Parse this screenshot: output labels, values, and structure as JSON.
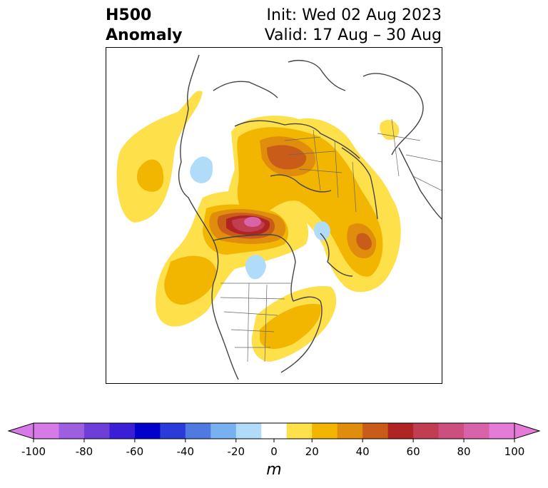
{
  "title": {
    "left_line1": "H500",
    "left_line2": "Anomaly",
    "right_line1": "Init: Wed 02 Aug 2023",
    "right_line2": "Valid: 17 Aug – 30 Aug"
  },
  "map": {
    "projection": "north-polar stereographic",
    "region": "Northern Hemisphere / North America"
  },
  "colorbar": {
    "unit": "m",
    "extend": "both",
    "bounds": [
      -100,
      -90,
      -80,
      -70,
      -60,
      -50,
      -40,
      -30,
      -20,
      -10,
      10,
      20,
      30,
      40,
      50,
      60,
      70,
      80,
      90,
      100
    ],
    "colors": [
      "#d77ae8",
      "#9e5ee0",
      "#6d3fd8",
      "#3a1fd6",
      "#0000cc",
      "#2a3bd9",
      "#4f7ae0",
      "#78b1f0",
      "#b0dcfa",
      "#ffffff",
      "#fde04a",
      "#f2b500",
      "#e08c0c",
      "#c95c18",
      "#b02424",
      "#c03d52",
      "#cc4f7d",
      "#d863a8",
      "#e47bd8"
    ],
    "under_color": "#d77ae8",
    "over_color": "#e47bd8",
    "tick_values": [
      -100,
      -80,
      -60,
      -40,
      -20,
      0,
      20,
      40,
      60,
      80,
      100
    ],
    "tick_labels": [
      "-100",
      "-80",
      "-60",
      "-40",
      "-20",
      "0",
      "20",
      "40",
      "60",
      "80",
      "100"
    ]
  }
}
